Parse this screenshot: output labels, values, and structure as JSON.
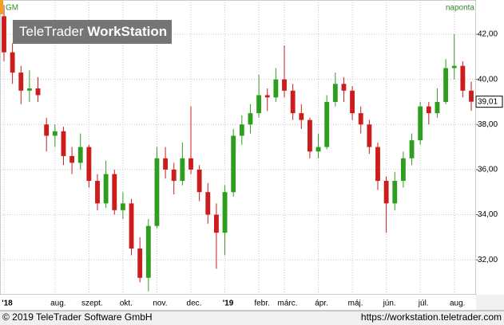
{
  "chart_data": {
    "type": "candlestick",
    "symbol": "GM",
    "interval": "naponta",
    "watermark": [
      "TeleTrader ",
      "WorkStation"
    ],
    "footer_left": "© 2019 TeleTrader Software GmbH",
    "footer_right": "https://workstation.teletrader.com",
    "categories": [
      "'18",
      null,
      null,
      null,
      null,
      null,
      "aug.",
      null,
      null,
      null,
      "szept.",
      null,
      null,
      null,
      "okt.",
      null,
      null,
      null,
      "nov.",
      null,
      null,
      null,
      "dec.",
      null,
      null,
      null,
      "'19",
      null,
      null,
      null,
      "febr.",
      null,
      null,
      "márc.",
      null,
      null,
      null,
      "ápr.",
      null,
      null,
      null,
      "máj.",
      null,
      null,
      null,
      "jún.",
      null,
      null,
      null,
      "júl.",
      null,
      null,
      null,
      "aug.",
      null,
      null
    ],
    "series": [
      {
        "up_color": "#2e9e1e",
        "down_color": "#cc1c1c",
        "open": [
          42.8,
          41.2,
          40.3,
          39.5,
          39.6,
          38.0,
          37.5,
          37.7,
          36.6,
          36.3,
          37.0,
          35.5,
          34.5,
          35.8,
          34.2,
          34.5,
          32.5,
          31.2,
          33.5,
          36.5,
          36.0,
          35.5,
          36.5,
          36.0,
          35.0,
          34.0,
          33.2,
          35.0,
          37.5,
          38.0,
          38.5,
          39.3,
          39.2,
          40.0,
          39.5,
          38.5,
          38.2,
          36.8,
          37.0,
          39.0,
          39.8,
          39.5,
          38.5,
          38.0,
          37.0,
          35.5,
          34.5,
          35.5,
          36.5,
          37.3,
          38.8,
          38.5,
          39.0,
          40.5,
          40.6,
          39.5
        ],
        "high": [
          43.3,
          41.6,
          40.6,
          40.4,
          40.1,
          38.3,
          38.0,
          37.9,
          37.0,
          37.6,
          37.1,
          35.8,
          36.4,
          36.0,
          35.0,
          34.7,
          33.0,
          33.8,
          37.0,
          37.0,
          36.3,
          37.2,
          38.8,
          36.2,
          35.4,
          34.5,
          35.3,
          37.8,
          38.4,
          38.9,
          40.2,
          39.6,
          40.5,
          41.5,
          39.8,
          38.9,
          38.3,
          37.6,
          39.3,
          40.3,
          40.1,
          39.7,
          38.8,
          38.2,
          37.2,
          35.7,
          35.9,
          36.8,
          37.6,
          39.0,
          39.0,
          39.6,
          40.9,
          42.0,
          40.8,
          39.9
        ],
        "low": [
          40.8,
          39.8,
          38.9,
          39.0,
          39.0,
          36.8,
          37.0,
          36.2,
          35.8,
          36.0,
          35.2,
          34.2,
          34.3,
          34.0,
          33.8,
          32.2,
          31.0,
          30.6,
          33.4,
          35.6,
          34.9,
          35.3,
          35.8,
          34.6,
          33.6,
          31.6,
          32.2,
          34.8,
          37.1,
          37.6,
          38.3,
          38.6,
          39.0,
          39.2,
          38.2,
          37.8,
          36.5,
          36.5,
          36.9,
          38.8,
          39.0,
          38.2,
          37.6,
          36.7,
          35.1,
          33.2,
          34.2,
          35.2,
          36.2,
          37.1,
          38.0,
          38.3,
          38.9,
          40.0,
          39.2,
          38.6
        ],
        "close": [
          41.2,
          40.3,
          39.5,
          39.6,
          39.3,
          37.5,
          37.7,
          36.6,
          36.3,
          37.0,
          35.5,
          34.5,
          35.8,
          34.2,
          34.5,
          32.5,
          31.2,
          33.5,
          36.5,
          36.0,
          35.5,
          36.5,
          36.0,
          35.0,
          34.0,
          33.2,
          35.0,
          37.5,
          38.0,
          38.5,
          39.3,
          39.2,
          40.0,
          39.5,
          38.5,
          38.2,
          36.8,
          37.0,
          39.0,
          39.8,
          39.5,
          38.5,
          38.0,
          37.0,
          35.5,
          34.5,
          35.5,
          36.5,
          37.3,
          38.8,
          38.5,
          39.0,
          40.5,
          40.6,
          39.5,
          39.01
        ]
      }
    ],
    "last_price": 39.01,
    "last_price_label": "39,01",
    "ylim": [
      30.45,
      43.52
    ],
    "yticks": [
      {
        "value": 32,
        "label": "32,00"
      },
      {
        "value": 34,
        "label": "34,00"
      },
      {
        "value": 36,
        "label": "36,00"
      },
      {
        "value": 38,
        "label": "38,00"
      },
      {
        "value": 40,
        "label": "40,00"
      },
      {
        "value": 42,
        "label": "42,00"
      }
    ],
    "grid": true
  }
}
